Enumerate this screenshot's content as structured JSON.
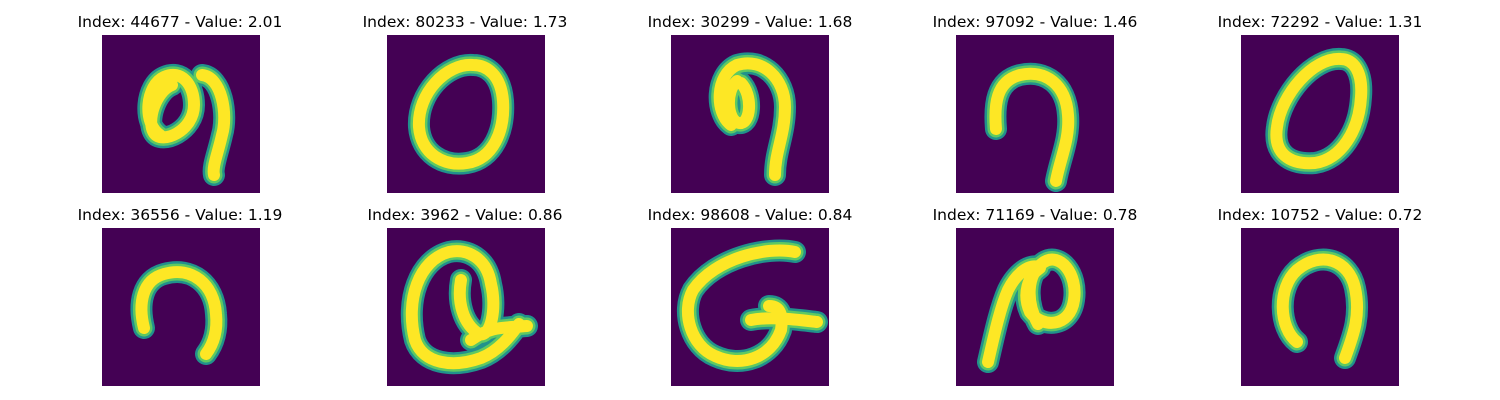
{
  "panels": [
    {
      "index": "44677",
      "value": "2.01",
      "title": "Index: 44677 - Value: 2.01",
      "glyph": "looped-nine"
    },
    {
      "index": "80233",
      "value": "1.73",
      "title": "Index: 80233 - Value: 1.73",
      "glyph": "zero"
    },
    {
      "index": "30299",
      "value": "1.68",
      "title": "Index: 30299 - Value: 1.68",
      "glyph": "looped-nine"
    },
    {
      "index": "97092",
      "value": "1.46",
      "title": "Index: 97092 - Value: 1.46",
      "glyph": "seven-hook"
    },
    {
      "index": "72292",
      "value": "1.31",
      "title": "Index: 72292 - Value: 1.31",
      "glyph": "zero"
    },
    {
      "index": "36556",
      "value": "1.19",
      "title": "Index: 36556 - Value: 1.19",
      "glyph": "arch"
    },
    {
      "index": "3962",
      "value": "0.86",
      "title": "Index: 3962 - Value: 0.86",
      "glyph": "q-loop"
    },
    {
      "index": "98608",
      "value": "0.84",
      "title": "Index: 98608 - Value: 0.84",
      "glyph": "q-loop"
    },
    {
      "index": "71169",
      "value": "0.78",
      "title": "Index: 71169 - Value: 0.78",
      "glyph": "n-loop"
    },
    {
      "index": "10752",
      "value": "0.72",
      "title": "Index: 10752 - Value: 0.72",
      "glyph": "arch"
    }
  ],
  "colors": {
    "background": "#440154",
    "stroke_core": "#fde725",
    "stroke_edge": "#21918c",
    "stroke_mid": "#5ec962"
  }
}
